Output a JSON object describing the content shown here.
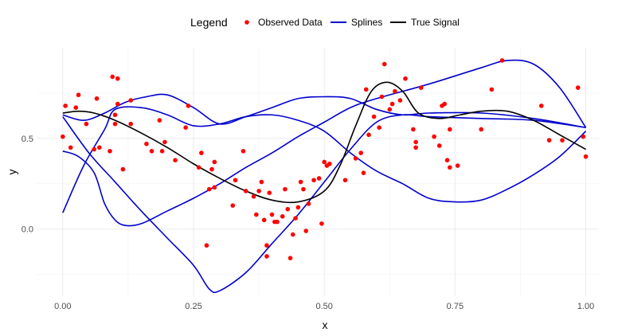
{
  "chart_data": {
    "type": "scatter",
    "xlabel": "x",
    "ylabel": "y",
    "xlim": [
      -0.05,
      1.025
    ],
    "ylim": [
      -0.37,
      1.0
    ],
    "grid": true,
    "legend": {
      "title": "Legend",
      "position": "top",
      "entries": [
        "Observed Data",
        "Splines",
        "True Signal"
      ]
    },
    "x_ticks": [
      0.0,
      0.25,
      0.5,
      0.75,
      1.0
    ],
    "x_tick_labels": [
      "0.00",
      "0.25",
      "0.50",
      "0.75",
      "1.00"
    ],
    "y_ticks": [
      0.0,
      0.5
    ],
    "y_tick_labels": [
      "0.0",
      "0.5"
    ],
    "colors": {
      "observed": "#ff0000",
      "splines": "#0000cd",
      "true_signal": "#000000"
    },
    "series": [
      {
        "name": "Observed Data",
        "kind": "points",
        "points": [
          [
            0.0,
            0.51
          ],
          [
            0.005,
            0.68
          ],
          [
            0.015,
            0.45
          ],
          [
            0.025,
            0.67
          ],
          [
            0.03,
            0.74
          ],
          [
            0.045,
            0.58
          ],
          [
            0.06,
            0.44
          ],
          [
            0.065,
            0.72
          ],
          [
            0.07,
            0.45
          ],
          [
            0.09,
            0.43
          ],
          [
            0.095,
            0.84
          ],
          [
            0.1,
            0.58
          ],
          [
            0.1,
            0.63
          ],
          [
            0.105,
            0.83
          ],
          [
            0.105,
            0.69
          ],
          [
            0.115,
            0.33
          ],
          [
            0.13,
            0.58
          ],
          [
            0.13,
            0.71
          ],
          [
            0.16,
            0.47
          ],
          [
            0.17,
            0.43
          ],
          [
            0.185,
            0.6
          ],
          [
            0.19,
            0.43
          ],
          [
            0.195,
            0.48
          ],
          [
            0.215,
            0.38
          ],
          [
            0.235,
            0.56
          ],
          [
            0.24,
            0.68
          ],
          [
            0.26,
            0.34
          ],
          [
            0.265,
            0.42
          ],
          [
            0.275,
            -0.09
          ],
          [
            0.28,
            0.22
          ],
          [
            0.285,
            0.33
          ],
          [
            0.29,
            0.37
          ],
          [
            0.29,
            0.23
          ],
          [
            0.325,
            0.13
          ],
          [
            0.33,
            0.27
          ],
          [
            0.345,
            0.43
          ],
          [
            0.35,
            0.21
          ],
          [
            0.365,
            0.18
          ],
          [
            0.37,
            0.08
          ],
          [
            0.375,
            0.21
          ],
          [
            0.38,
            0.26
          ],
          [
            0.385,
            0.05
          ],
          [
            0.39,
            -0.09
          ],
          [
            0.39,
            -0.15
          ],
          [
            0.395,
            0.2
          ],
          [
            0.4,
            0.08
          ],
          [
            0.405,
            0.04
          ],
          [
            0.41,
            0.04
          ],
          [
            0.42,
            0.07
          ],
          [
            0.425,
            0.22
          ],
          [
            0.43,
            0.11
          ],
          [
            0.435,
            -0.16
          ],
          [
            0.44,
            -0.03
          ],
          [
            0.445,
            0.06
          ],
          [
            0.45,
            0.12
          ],
          [
            0.455,
            0.26
          ],
          [
            0.46,
            0.22
          ],
          [
            0.465,
            -0.01
          ],
          [
            0.47,
            0.14
          ],
          [
            0.48,
            0.27
          ],
          [
            0.49,
            0.28
          ],
          [
            0.495,
            0.03
          ],
          [
            0.5,
            0.37
          ],
          [
            0.505,
            0.35
          ],
          [
            0.51,
            0.36
          ],
          [
            0.54,
            0.27
          ],
          [
            0.56,
            0.39
          ],
          [
            0.57,
            0.42
          ],
          [
            0.575,
            0.31
          ],
          [
            0.58,
            0.77
          ],
          [
            0.585,
            0.52
          ],
          [
            0.595,
            0.62
          ],
          [
            0.605,
            0.56
          ],
          [
            0.61,
            0.73
          ],
          [
            0.615,
            0.91
          ],
          [
            0.625,
            0.66
          ],
          [
            0.63,
            0.69
          ],
          [
            0.635,
            0.76
          ],
          [
            0.645,
            0.71
          ],
          [
            0.655,
            0.83
          ],
          [
            0.67,
            0.55
          ],
          [
            0.675,
            0.45
          ],
          [
            0.675,
            0.48
          ],
          [
            0.685,
            0.78
          ],
          [
            0.71,
            0.51
          ],
          [
            0.72,
            0.46
          ],
          [
            0.725,
            0.68
          ],
          [
            0.73,
            0.69
          ],
          [
            0.735,
            0.38
          ],
          [
            0.74,
            0.34
          ],
          [
            0.74,
            0.55
          ],
          [
            0.755,
            0.35
          ],
          [
            0.8,
            0.55
          ],
          [
            0.82,
            0.77
          ],
          [
            0.84,
            0.93
          ],
          [
            0.915,
            0.68
          ],
          [
            0.93,
            0.49
          ],
          [
            0.955,
            0.49
          ],
          [
            0.985,
            0.78
          ],
          [
            0.995,
            0.51
          ],
          [
            1.0,
            0.4
          ]
        ]
      },
      {
        "name": "Splines",
        "kind": "lines",
        "curves": [
          [
            [
              0.0,
              0.62
            ],
            [
              0.05,
              0.42
            ],
            [
              0.1,
              0.26
            ],
            [
              0.15,
              0.1
            ],
            [
              0.2,
              -0.05
            ],
            [
              0.25,
              -0.2
            ],
            [
              0.28,
              -0.33
            ],
            [
              0.3,
              -0.34
            ],
            [
              0.35,
              -0.24
            ],
            [
              0.4,
              -0.08
            ],
            [
              0.45,
              0.08
            ],
            [
              0.5,
              0.26
            ],
            [
              0.55,
              0.44
            ],
            [
              0.6,
              0.59
            ],
            [
              0.65,
              0.63
            ],
            [
              0.7,
              0.62
            ],
            [
              0.8,
              0.61
            ],
            [
              0.9,
              0.6
            ],
            [
              1.0,
              0.56
            ]
          ],
          [
            [
              0.0,
              0.43
            ],
            [
              0.03,
              0.4
            ],
            [
              0.06,
              0.31
            ],
            [
              0.08,
              0.14
            ],
            [
              0.1,
              0.05
            ],
            [
              0.12,
              0.02
            ],
            [
              0.15,
              0.03
            ],
            [
              0.2,
              0.1
            ],
            [
              0.25,
              0.17
            ],
            [
              0.3,
              0.25
            ],
            [
              0.35,
              0.34
            ],
            [
              0.4,
              0.42
            ],
            [
              0.45,
              0.51
            ],
            [
              0.5,
              0.59
            ],
            [
              0.55,
              0.67
            ],
            [
              0.6,
              0.72
            ],
            [
              0.7,
              0.8
            ],
            [
              0.8,
              0.89
            ],
            [
              0.85,
              0.93
            ],
            [
              0.9,
              0.91
            ],
            [
              0.95,
              0.78
            ],
            [
              1.0,
              0.56
            ]
          ],
          [
            [
              0.0,
              0.63
            ],
            [
              0.04,
              0.6
            ],
            [
              0.08,
              0.64
            ],
            [
              0.12,
              0.7
            ],
            [
              0.16,
              0.73
            ],
            [
              0.2,
              0.74
            ],
            [
              0.25,
              0.67
            ],
            [
              0.3,
              0.58
            ],
            [
              0.35,
              0.62
            ],
            [
              0.4,
              0.67
            ],
            [
              0.45,
              0.72
            ],
            [
              0.5,
              0.73
            ],
            [
              0.55,
              0.72
            ],
            [
              0.6,
              0.66
            ],
            [
              0.65,
              0.63
            ],
            [
              0.7,
              0.64
            ],
            [
              0.8,
              0.64
            ],
            [
              0.9,
              0.61
            ],
            [
              1.0,
              0.56
            ]
          ],
          [
            [
              0.0,
              0.09
            ],
            [
              0.04,
              0.35
            ],
            [
              0.08,
              0.55
            ],
            [
              0.1,
              0.66
            ],
            [
              0.15,
              0.67
            ],
            [
              0.2,
              0.63
            ],
            [
              0.25,
              0.57
            ],
            [
              0.3,
              0.58
            ],
            [
              0.35,
              0.62
            ],
            [
              0.4,
              0.63
            ],
            [
              0.45,
              0.6
            ],
            [
              0.5,
              0.54
            ],
            [
              0.55,
              0.42
            ],
            [
              0.6,
              0.32
            ],
            [
              0.65,
              0.25
            ],
            [
              0.7,
              0.17
            ],
            [
              0.75,
              0.15
            ],
            [
              0.8,
              0.16
            ],
            [
              0.85,
              0.22
            ],
            [
              0.9,
              0.3
            ],
            [
              0.95,
              0.4
            ],
            [
              1.0,
              0.54
            ]
          ]
        ]
      },
      {
        "name": "True Signal",
        "kind": "line",
        "points": [
          [
            0.0,
            0.64
          ],
          [
            0.03,
            0.65
          ],
          [
            0.06,
            0.64
          ],
          [
            0.1,
            0.6
          ],
          [
            0.15,
            0.53
          ],
          [
            0.2,
            0.45
          ],
          [
            0.25,
            0.36
          ],
          [
            0.3,
            0.28
          ],
          [
            0.35,
            0.21
          ],
          [
            0.4,
            0.16
          ],
          [
            0.45,
            0.15
          ],
          [
            0.5,
            0.21
          ],
          [
            0.53,
            0.35
          ],
          [
            0.56,
            0.57
          ],
          [
            0.59,
            0.76
          ],
          [
            0.62,
            0.81
          ],
          [
            0.65,
            0.76
          ],
          [
            0.68,
            0.64
          ],
          [
            0.72,
            0.61
          ],
          [
            0.76,
            0.63
          ],
          [
            0.8,
            0.65
          ],
          [
            0.85,
            0.65
          ],
          [
            0.9,
            0.6
          ],
          [
            0.95,
            0.52
          ],
          [
            1.0,
            0.44
          ]
        ]
      }
    ]
  }
}
